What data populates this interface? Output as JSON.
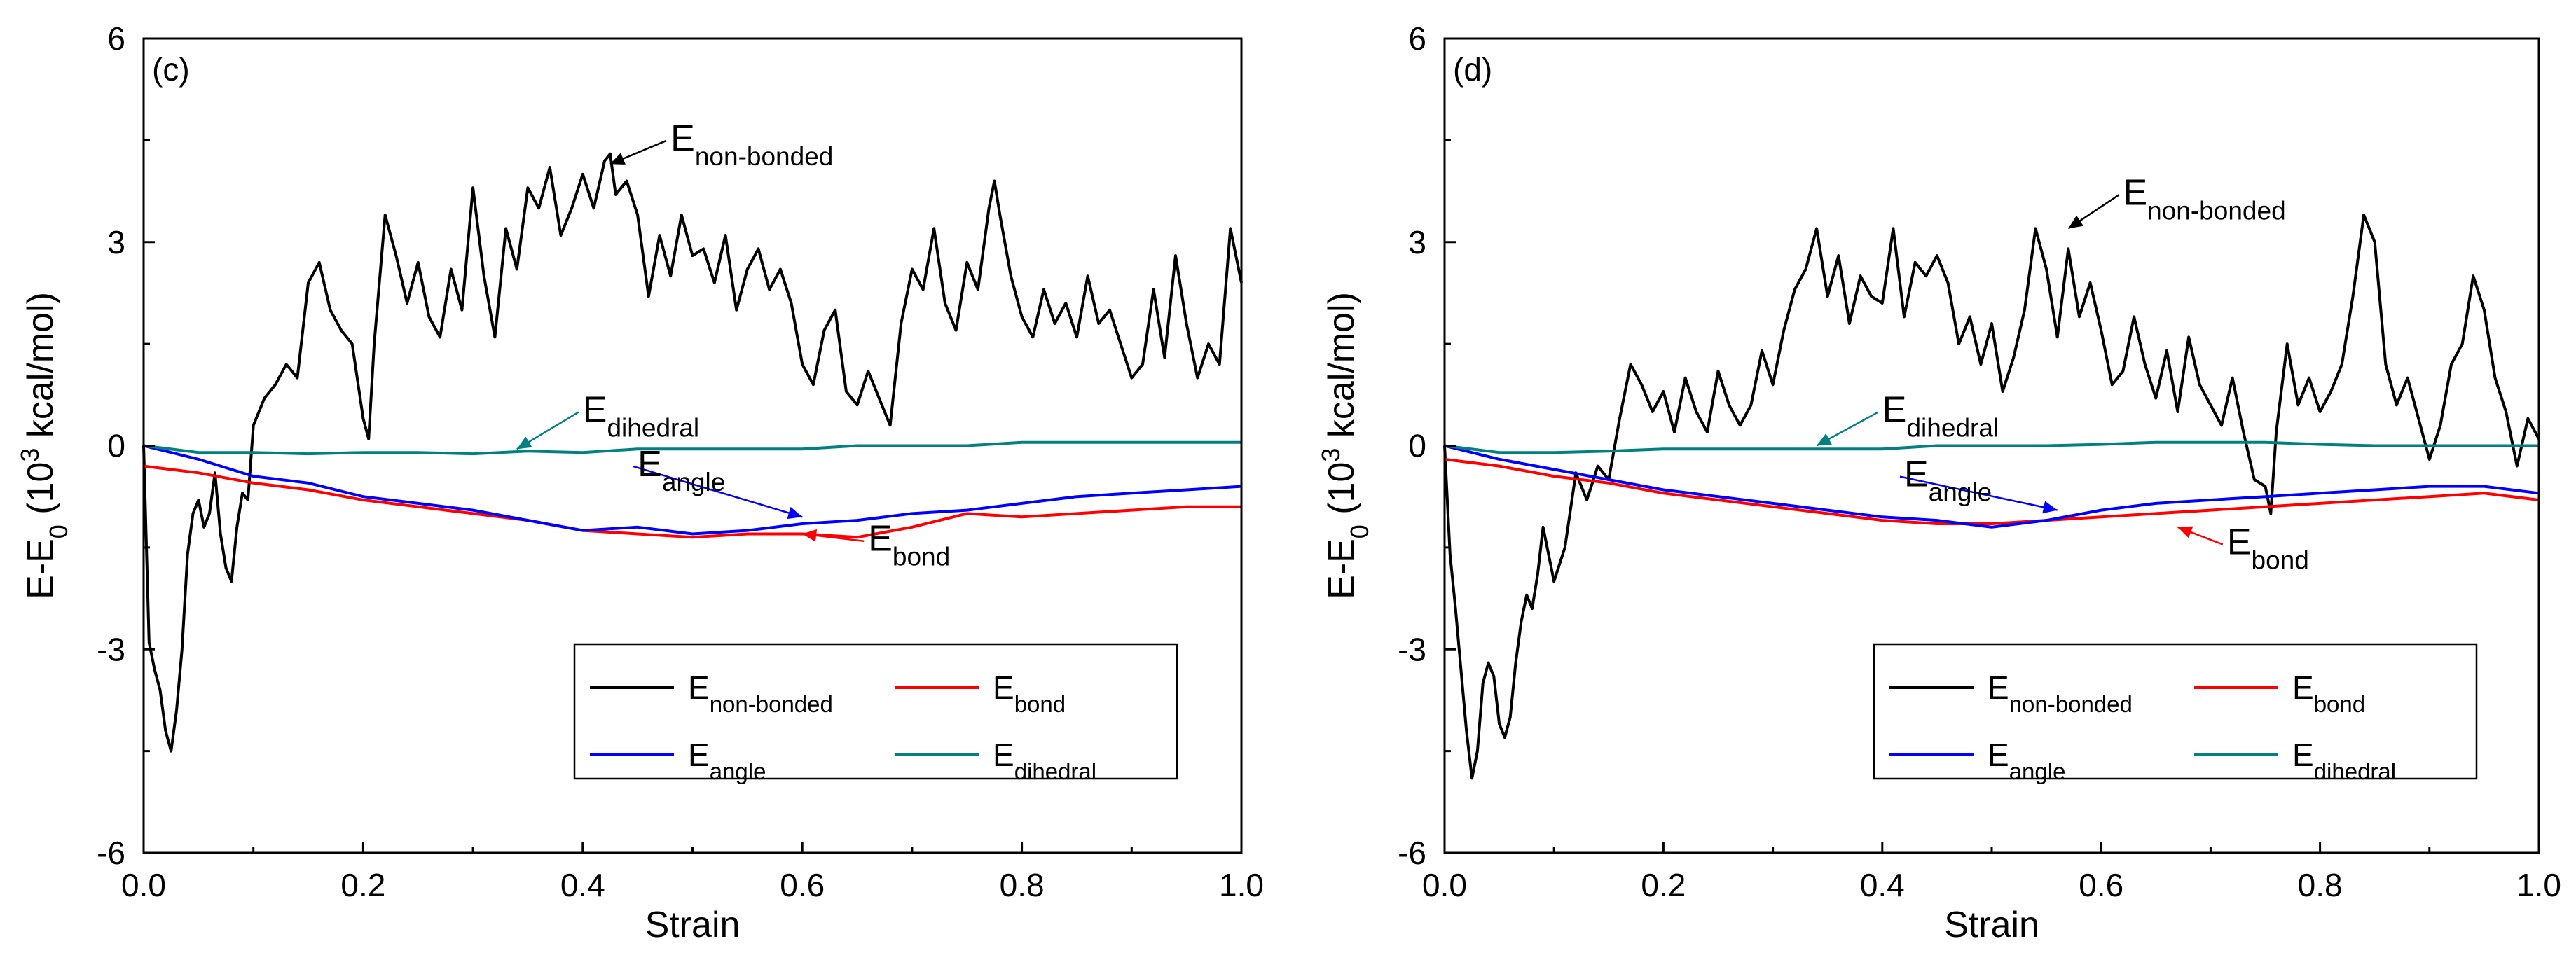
{
  "chart_data": [
    {
      "type": "line",
      "panel_label": "(c)",
      "xlabel": "Strain",
      "ylabel": {
        "base": "E-E",
        "sub": "0",
        "rest": " (10",
        "sup": "3",
        "tail": " kcal/mol)"
      },
      "xlim": [
        0.0,
        1.0
      ],
      "ylim": [
        -6,
        6
      ],
      "xticks": [
        "0.0",
        "0.2",
        "0.4",
        "0.6",
        "0.8",
        "1.0"
      ],
      "yticks": [
        "-6",
        "-3",
        "0",
        "3",
        "6"
      ],
      "legend": [
        {
          "base": "E",
          "sub": "non-bonded",
          "color": "#000000"
        },
        {
          "base": "E",
          "sub": "bond",
          "color": "#ff0000"
        },
        {
          "base": "E",
          "sub": "angle",
          "color": "#0000ff"
        },
        {
          "base": "E",
          "sub": "dihedral",
          "color": "#008080"
        }
      ],
      "series": [
        {
          "name": "E_non-bonded",
          "color": "#000000",
          "x": [
            0.0,
            0.005,
            0.01,
            0.015,
            0.02,
            0.025,
            0.03,
            0.035,
            0.04,
            0.045,
            0.05,
            0.055,
            0.06,
            0.065,
            0.07,
            0.075,
            0.08,
            0.085,
            0.09,
            0.095,
            0.1,
            0.11,
            0.12,
            0.13,
            0.14,
            0.15,
            0.16,
            0.17,
            0.18,
            0.19,
            0.2,
            0.205,
            0.21,
            0.22,
            0.23,
            0.24,
            0.25,
            0.26,
            0.27,
            0.28,
            0.29,
            0.3,
            0.31,
            0.32,
            0.33,
            0.34,
            0.35,
            0.36,
            0.37,
            0.38,
            0.39,
            0.4,
            0.41,
            0.42,
            0.425,
            0.43,
            0.44,
            0.45,
            0.46,
            0.47,
            0.48,
            0.49,
            0.5,
            0.51,
            0.52,
            0.53,
            0.54,
            0.55,
            0.56,
            0.57,
            0.58,
            0.59,
            0.6,
            0.61,
            0.62,
            0.63,
            0.64,
            0.65,
            0.66,
            0.67,
            0.68,
            0.69,
            0.7,
            0.71,
            0.72,
            0.73,
            0.74,
            0.75,
            0.76,
            0.77,
            0.775,
            0.78,
            0.79,
            0.8,
            0.81,
            0.82,
            0.83,
            0.84,
            0.85,
            0.86,
            0.87,
            0.88,
            0.89,
            0.9,
            0.91,
            0.92,
            0.93,
            0.94,
            0.95,
            0.96,
            0.97,
            0.98,
            0.99,
            1.0
          ],
          "y": [
            0.0,
            -2.9,
            -3.3,
            -3.6,
            -4.2,
            -4.5,
            -3.9,
            -3.0,
            -1.6,
            -1.0,
            -0.8,
            -1.2,
            -1.0,
            -0.4,
            -1.3,
            -1.8,
            -2.0,
            -1.2,
            -0.7,
            -0.8,
            0.3,
            0.7,
            0.9,
            1.2,
            1.0,
            2.4,
            2.7,
            2.0,
            1.7,
            1.5,
            0.4,
            0.1,
            1.5,
            3.4,
            2.8,
            2.1,
            2.7,
            1.9,
            1.6,
            2.6,
            2.0,
            3.8,
            2.5,
            1.6,
            3.2,
            2.6,
            3.8,
            3.5,
            4.1,
            3.1,
            3.5,
            4.0,
            3.5,
            4.2,
            4.3,
            3.7,
            3.9,
            3.4,
            2.2,
            3.1,
            2.5,
            3.4,
            2.8,
            2.9,
            2.4,
            3.1,
            2.0,
            2.6,
            2.9,
            2.3,
            2.6,
            2.1,
            1.2,
            0.9,
            1.7,
            2.0,
            0.8,
            0.6,
            1.1,
            0.7,
            0.3,
            1.8,
            2.6,
            2.3,
            3.2,
            2.1,
            1.7,
            2.7,
            2.3,
            3.5,
            3.9,
            3.4,
            2.5,
            1.9,
            1.6,
            2.3,
            1.8,
            2.1,
            1.6,
            2.5,
            1.8,
            2.0,
            1.5,
            1.0,
            1.2,
            2.3,
            1.3,
            2.8,
            1.8,
            1.0,
            1.5,
            1.2,
            3.2,
            2.4
          ]
        },
        {
          "name": "E_bond",
          "color": "#ff0000",
          "x": [
            0.0,
            0.05,
            0.1,
            0.15,
            0.2,
            0.25,
            0.3,
            0.35,
            0.4,
            0.45,
            0.5,
            0.55,
            0.6,
            0.65,
            0.7,
            0.75,
            0.8,
            0.85,
            0.9,
            0.95,
            1.0
          ],
          "y": [
            -0.3,
            -0.4,
            -0.55,
            -0.65,
            -0.8,
            -0.9,
            -1.0,
            -1.1,
            -1.25,
            -1.3,
            -1.35,
            -1.3,
            -1.3,
            -1.35,
            -1.2,
            -1.0,
            -1.05,
            -1.0,
            -0.95,
            -0.9,
            -0.9
          ]
        },
        {
          "name": "E_angle",
          "color": "#0000ff",
          "x": [
            0.0,
            0.05,
            0.1,
            0.15,
            0.2,
            0.25,
            0.3,
            0.35,
            0.4,
            0.45,
            0.5,
            0.55,
            0.6,
            0.65,
            0.7,
            0.75,
            0.8,
            0.85,
            0.9,
            0.95,
            1.0
          ],
          "y": [
            0.0,
            -0.2,
            -0.45,
            -0.55,
            -0.75,
            -0.85,
            -0.95,
            -1.1,
            -1.25,
            -1.2,
            -1.3,
            -1.25,
            -1.15,
            -1.1,
            -1.0,
            -0.95,
            -0.85,
            -0.75,
            -0.7,
            -0.65,
            -0.6
          ]
        },
        {
          "name": "E_dihedral",
          "color": "#008080",
          "x": [
            0.0,
            0.05,
            0.1,
            0.15,
            0.2,
            0.25,
            0.3,
            0.35,
            0.4,
            0.45,
            0.5,
            0.55,
            0.6,
            0.65,
            0.7,
            0.75,
            0.8,
            0.85,
            0.9,
            0.95,
            1.0
          ],
          "y": [
            0.0,
            -0.1,
            -0.1,
            -0.12,
            -0.1,
            -0.1,
            -0.12,
            -0.08,
            -0.1,
            -0.05,
            -0.05,
            -0.05,
            -0.05,
            0.0,
            0.0,
            0.0,
            0.05,
            0.05,
            0.05,
            0.05,
            0.05
          ]
        }
      ],
      "annotations": [
        {
          "base": "E",
          "sub": "non-bonded",
          "label_x": 0.48,
          "label_y": 4.35,
          "arrow_to_x": 0.425,
          "arrow_to_y": 4.15,
          "color": "#000000"
        },
        {
          "base": "E",
          "sub": "dihedral",
          "label_x": 0.4,
          "label_y": 0.35,
          "arrow_to_x": 0.34,
          "arrow_to_y": -0.05,
          "color": "#008080"
        },
        {
          "base": "E",
          "sub": "angle",
          "label_x": 0.45,
          "label_y": -0.45,
          "arrow_to_x": 0.6,
          "arrow_to_y": -1.05,
          "color": "#0000ff"
        },
        {
          "base": "E",
          "sub": "bond",
          "label_x": 0.66,
          "label_y": -1.55,
          "arrow_to_x": 0.6,
          "arrow_to_y": -1.3,
          "color": "#ff0000"
        }
      ]
    },
    {
      "type": "line",
      "panel_label": "(d)",
      "xlabel": "Strain",
      "ylabel": {
        "base": "E-E",
        "sub": "0",
        "rest": " (10",
        "sup": "3",
        "tail": " kcal/mol)"
      },
      "xlim": [
        0.0,
        1.0
      ],
      "ylim": [
        -6,
        6
      ],
      "xticks": [
        "0.0",
        "0.2",
        "0.4",
        "0.6",
        "0.8",
        "1.0"
      ],
      "yticks": [
        "-6",
        "-3",
        "0",
        "3",
        "6"
      ],
      "legend": [
        {
          "base": "E",
          "sub": "non-bonded",
          "color": "#000000"
        },
        {
          "base": "E",
          "sub": "bond",
          "color": "#ff0000"
        },
        {
          "base": "E",
          "sub": "angle",
          "color": "#0000ff"
        },
        {
          "base": "E",
          "sub": "dihedral",
          "color": "#008080"
        }
      ],
      "series": [
        {
          "name": "E_non-bonded",
          "color": "#000000",
          "x": [
            0.0,
            0.005,
            0.01,
            0.015,
            0.02,
            0.025,
            0.03,
            0.035,
            0.04,
            0.045,
            0.05,
            0.055,
            0.06,
            0.065,
            0.07,
            0.075,
            0.08,
            0.085,
            0.09,
            0.1,
            0.11,
            0.12,
            0.13,
            0.14,
            0.15,
            0.16,
            0.17,
            0.18,
            0.19,
            0.2,
            0.21,
            0.22,
            0.23,
            0.24,
            0.25,
            0.26,
            0.27,
            0.28,
            0.29,
            0.3,
            0.31,
            0.32,
            0.33,
            0.34,
            0.35,
            0.36,
            0.37,
            0.38,
            0.39,
            0.4,
            0.41,
            0.42,
            0.43,
            0.44,
            0.45,
            0.46,
            0.47,
            0.48,
            0.49,
            0.5,
            0.51,
            0.52,
            0.53,
            0.54,
            0.55,
            0.56,
            0.57,
            0.58,
            0.59,
            0.6,
            0.61,
            0.62,
            0.63,
            0.64,
            0.65,
            0.66,
            0.67,
            0.68,
            0.69,
            0.7,
            0.71,
            0.72,
            0.73,
            0.74,
            0.75,
            0.755,
            0.76,
            0.77,
            0.78,
            0.79,
            0.8,
            0.81,
            0.82,
            0.83,
            0.84,
            0.85,
            0.86,
            0.87,
            0.88,
            0.89,
            0.9,
            0.91,
            0.92,
            0.93,
            0.94,
            0.95,
            0.96,
            0.97,
            0.98,
            0.99,
            1.0
          ],
          "y": [
            0.0,
            -1.6,
            -2.4,
            -3.3,
            -4.2,
            -4.9,
            -4.5,
            -3.5,
            -3.2,
            -3.4,
            -4.1,
            -4.3,
            -4.0,
            -3.2,
            -2.6,
            -2.2,
            -2.4,
            -1.9,
            -1.2,
            -2.0,
            -1.5,
            -0.4,
            -0.8,
            -0.3,
            -0.5,
            0.4,
            1.2,
            0.9,
            0.5,
            0.8,
            0.2,
            1.0,
            0.5,
            0.2,
            1.1,
            0.6,
            0.3,
            0.6,
            1.4,
            0.9,
            1.7,
            2.3,
            2.6,
            3.2,
            2.2,
            2.8,
            1.8,
            2.5,
            2.2,
            2.1,
            3.2,
            1.9,
            2.7,
            2.5,
            2.8,
            2.4,
            1.5,
            1.9,
            1.2,
            1.8,
            0.8,
            1.3,
            2.0,
            3.2,
            2.6,
            1.6,
            2.9,
            1.9,
            2.4,
            1.7,
            0.9,
            1.1,
            1.9,
            1.2,
            0.7,
            1.4,
            0.5,
            1.6,
            0.9,
            0.6,
            0.3,
            1.0,
            0.2,
            -0.5,
            -0.6,
            -1.0,
            0.2,
            1.5,
            0.6,
            1.0,
            0.5,
            0.8,
            1.2,
            2.2,
            3.4,
            3.0,
            1.2,
            0.6,
            1.0,
            0.4,
            -0.2,
            0.3,
            1.2,
            1.5,
            2.5,
            2.0,
            1.0,
            0.5,
            -0.3,
            0.4,
            0.1
          ]
        },
        {
          "name": "E_bond",
          "color": "#ff0000",
          "x": [
            0.0,
            0.05,
            0.1,
            0.15,
            0.2,
            0.25,
            0.3,
            0.35,
            0.4,
            0.45,
            0.5,
            0.55,
            0.6,
            0.65,
            0.7,
            0.75,
            0.8,
            0.85,
            0.9,
            0.95,
            1.0
          ],
          "y": [
            -0.2,
            -0.3,
            -0.45,
            -0.55,
            -0.7,
            -0.8,
            -0.9,
            -1.0,
            -1.1,
            -1.15,
            -1.15,
            -1.1,
            -1.05,
            -1.0,
            -0.95,
            -0.9,
            -0.85,
            -0.8,
            -0.75,
            -0.7,
            -0.8
          ]
        },
        {
          "name": "E_angle",
          "color": "#0000ff",
          "x": [
            0.0,
            0.05,
            0.1,
            0.15,
            0.2,
            0.25,
            0.3,
            0.35,
            0.4,
            0.45,
            0.5,
            0.55,
            0.6,
            0.65,
            0.7,
            0.75,
            0.8,
            0.85,
            0.9,
            0.95,
            1.0
          ],
          "y": [
            0.0,
            -0.2,
            -0.35,
            -0.5,
            -0.65,
            -0.75,
            -0.85,
            -0.95,
            -1.05,
            -1.1,
            -1.2,
            -1.1,
            -0.95,
            -0.85,
            -0.8,
            -0.75,
            -0.7,
            -0.65,
            -0.6,
            -0.6,
            -0.7
          ]
        },
        {
          "name": "E_dihedral",
          "color": "#008080",
          "x": [
            0.0,
            0.05,
            0.1,
            0.15,
            0.2,
            0.25,
            0.3,
            0.35,
            0.4,
            0.45,
            0.5,
            0.55,
            0.6,
            0.65,
            0.7,
            0.75,
            0.8,
            0.85,
            0.9,
            0.95,
            1.0
          ],
          "y": [
            0.0,
            -0.1,
            -0.1,
            -0.08,
            -0.05,
            -0.05,
            -0.05,
            -0.05,
            -0.05,
            0.0,
            0.0,
            0.0,
            0.02,
            0.05,
            0.05,
            0.05,
            0.02,
            0.0,
            0.0,
            0.0,
            0.0
          ]
        }
      ],
      "annotations": [
        {
          "base": "E",
          "sub": "non-bonded",
          "label_x": 0.62,
          "label_y": 3.55,
          "arrow_to_x": 0.57,
          "arrow_to_y": 3.2,
          "color": "#000000"
        },
        {
          "base": "E",
          "sub": "dihedral",
          "label_x": 0.4,
          "label_y": 0.35,
          "arrow_to_x": 0.34,
          "arrow_to_y": 0.0,
          "color": "#008080"
        },
        {
          "base": "E",
          "sub": "angle",
          "label_x": 0.42,
          "label_y": -0.6,
          "arrow_to_x": 0.56,
          "arrow_to_y": -0.95,
          "color": "#0000ff"
        },
        {
          "base": "E",
          "sub": "bond",
          "label_x": 0.715,
          "label_y": -1.6,
          "arrow_to_x": 0.67,
          "arrow_to_y": -1.2,
          "color": "#ff0000"
        }
      ]
    }
  ]
}
